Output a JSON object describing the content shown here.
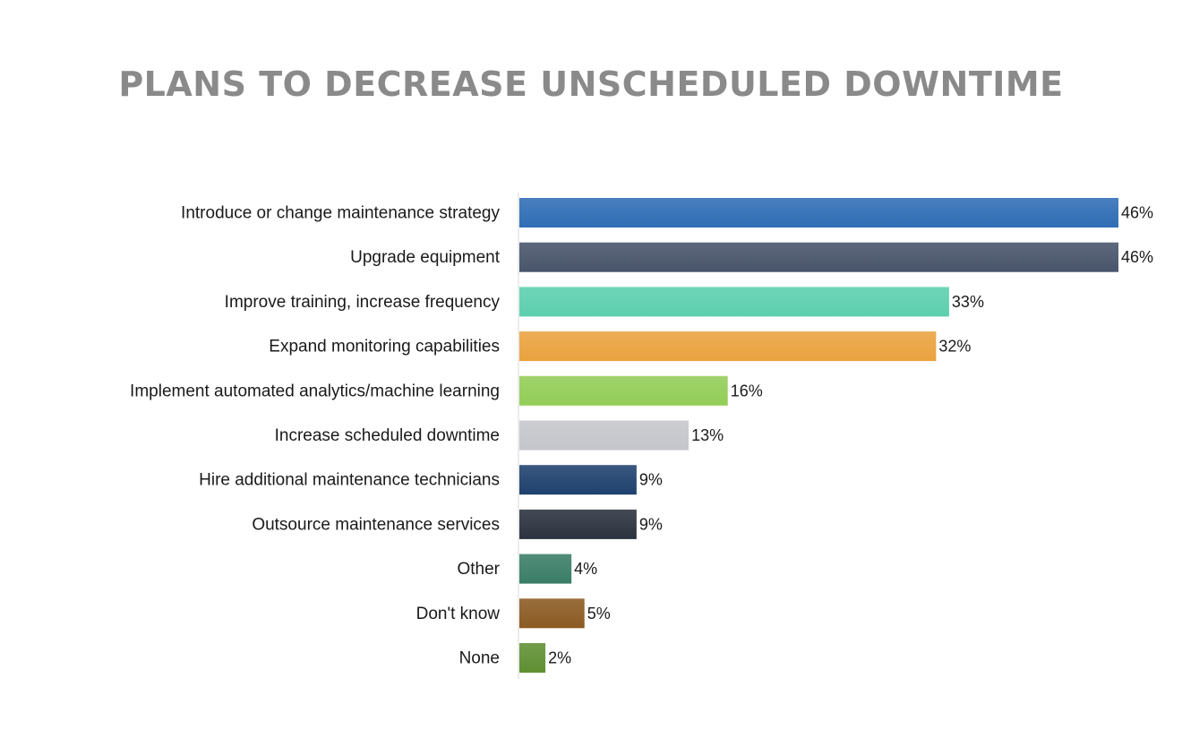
{
  "chart_data": {
    "type": "bar",
    "orientation": "horizontal",
    "title": "PLANS TO DECREASE UNSCHEDULED DOWNTIME",
    "xlabel": "",
    "ylabel": "",
    "xlim": [
      0,
      46
    ],
    "grid": false,
    "legend": "none",
    "categories": [
      "Introduce or change maintenance strategy",
      "Upgrade equipment",
      "Improve training, increase frequency",
      "Expand monitoring capabilities",
      "Implement automated analytics/machine learning",
      "Increase scheduled downtime",
      "Hire additional maintenance technicians",
      "Outsource maintenance services",
      "Other",
      "Don't know",
      "None"
    ],
    "values": [
      46,
      46,
      33,
      32,
      16,
      13,
      9,
      9,
      4,
      5,
      2
    ],
    "value_labels": [
      "46%",
      "46%",
      "33%",
      "32%",
      "16%",
      "13%",
      "9%",
      "9%",
      "4%",
      "5%",
      "2%"
    ],
    "colors": [
      "#2f6db5",
      "#48546a",
      "#5ccfae",
      "#eaa23f",
      "#93cd57",
      "#c5c6cb",
      "#1f416e",
      "#2b323e",
      "#3a7d66",
      "#8b5a22",
      "#5f8f33"
    ]
  }
}
